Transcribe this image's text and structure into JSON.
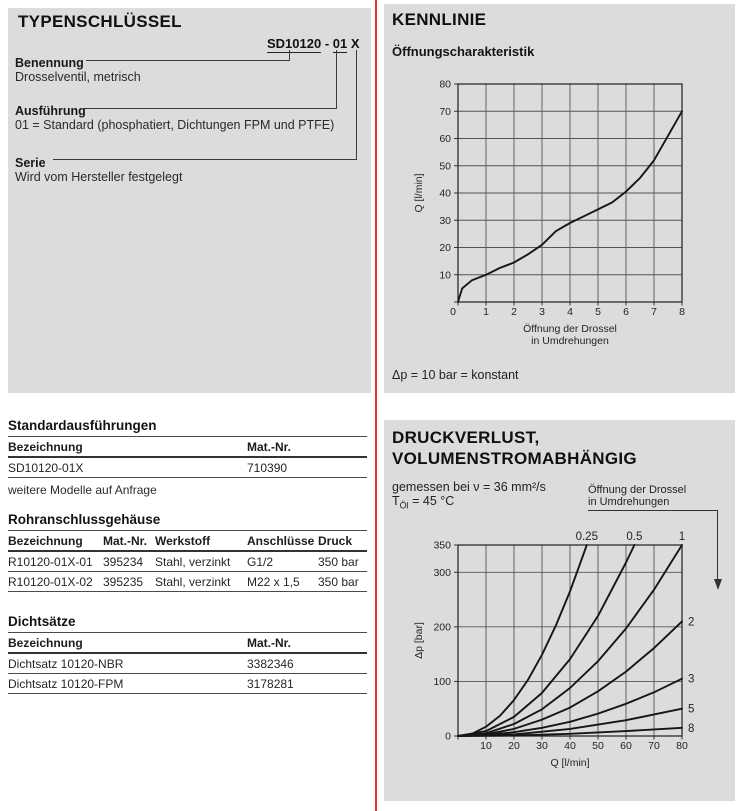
{
  "typenschluessel": {
    "title": "TYPENSCHLÜSSEL",
    "code_part1": "SD10120",
    "code_sep": " - ",
    "code_part2": "01",
    "code_part3": " X",
    "entries": [
      {
        "label": "Benennung",
        "desc": "Drosselventil, metrisch"
      },
      {
        "label": "Ausführung",
        "desc": "01 = Standard (phosphatiert, Dichtungen FPM und PTFE)"
      },
      {
        "label": "Serie",
        "desc": "Wird vom Hersteller festgelegt"
      }
    ]
  },
  "tables": {
    "standard": {
      "title": "Standardausführungen",
      "headers": [
        "Bezeichnung",
        "Mat.-Nr."
      ],
      "rows": [
        [
          "SD10120-01X",
          "710390"
        ]
      ],
      "footnote": "weitere Modelle auf Anfrage"
    },
    "rohranschluss": {
      "title": "Rohranschlussgehäuse",
      "headers": [
        "Bezeichnung",
        "Mat.-Nr.",
        "Werkstoff",
        "Anschlüsse",
        "Druck"
      ],
      "rows": [
        [
          "R10120-01X-01",
          "395234",
          "Stahl, verzinkt",
          "G1/2",
          "350 bar"
        ],
        [
          "R10120-01X-02",
          "395235",
          "Stahl, verzinkt",
          "M22 x 1,5",
          "350 bar"
        ]
      ]
    },
    "dichtsaetze": {
      "title": "Dichtsätze",
      "headers": [
        "Bezeichnung",
        "Mat.-Nr."
      ],
      "rows": [
        [
          "Dichtsatz 10120-NBR",
          "3382346"
        ],
        [
          "Dichtsatz 10120-FPM",
          "3178281"
        ]
      ]
    }
  },
  "kennlinie": {
    "title": "KENNLINIE",
    "subtitle": "Öffnungscharakteristik",
    "note": "Δp = 10 bar = konstant"
  },
  "druckverlust": {
    "title_line1": "DRUCKVERLUST,",
    "title_line2": "VOLUMENSTROMABHÄNGIG",
    "measured_line1": "gemessen bei ν = 36 mm²/s",
    "t_symbol": "T",
    "t_sub": "Öl",
    "t_rest": " = 45 °C",
    "arrow_label_line1": "Öffnung der Drossel",
    "arrow_label_line2": "in Umdrehungen"
  },
  "chart_data": [
    {
      "type": "line",
      "title": "Öffnungscharakteristik",
      "xlabel_lines": [
        "Öffnung der Drossel",
        "in Umdrehungen"
      ],
      "ylabel": "Q [l/min]",
      "xlim": [
        0,
        8
      ],
      "ylim": [
        0,
        80
      ],
      "xticks": [
        0,
        1,
        2,
        3,
        4,
        5,
        6,
        7,
        8
      ],
      "yticks": [
        0,
        10,
        20,
        30,
        40,
        50,
        60,
        70,
        80
      ],
      "xtick_labels": [
        0,
        1,
        2,
        3,
        4,
        5,
        6,
        7,
        8
      ],
      "ytick_labels": [
        10,
        20,
        30,
        40,
        50,
        60,
        70,
        80
      ],
      "grid": true,
      "note": "Δp = 10 bar = konstant",
      "series": [
        {
          "name": "Q",
          "x": [
            0,
            0.15,
            0.5,
            1,
            1.5,
            2,
            2.5,
            3,
            3.5,
            4,
            4.5,
            5,
            5.5,
            6,
            6.5,
            7,
            7.5,
            8
          ],
          "y": [
            0,
            5,
            8,
            10,
            12.5,
            14.5,
            17.5,
            21,
            26,
            29,
            31.5,
            34,
            36.5,
            40.5,
            45.5,
            52,
            61,
            70
          ]
        }
      ]
    },
    {
      "type": "line",
      "title": "Druckverlust, volumenstromabhängig",
      "legend_title": "Öffnung der Drossel in Umdrehungen",
      "xlabel_lines": [
        "Q [l/min]"
      ],
      "ylabel": "Δp [bar]",
      "xlim": [
        0,
        80
      ],
      "ylim": [
        0,
        350
      ],
      "xticks": [
        0,
        10,
        20,
        30,
        40,
        50,
        60,
        70,
        80
      ],
      "yticks": [
        0,
        100,
        200,
        300,
        350
      ],
      "xtick_labels": [
        10,
        20,
        30,
        40,
        50,
        60,
        70,
        80
      ],
      "ytick_labels": [
        0,
        100,
        200,
        300,
        350
      ],
      "grid": true,
      "series": [
        {
          "name": "0.25",
          "label_pos": "top",
          "x": [
            0,
            5,
            10,
            15,
            20,
            25,
            30,
            35,
            40,
            46
          ],
          "y": [
            0,
            4,
            17,
            37,
            66,
            103,
            149,
            203,
            265,
            350
          ]
        },
        {
          "name": "0.5",
          "label_pos": "top",
          "x": [
            0,
            10,
            20,
            30,
            40,
            50,
            60,
            63
          ],
          "y": [
            0,
            9,
            35,
            79,
            141,
            220,
            318,
            350
          ]
        },
        {
          "name": "1",
          "label_pos": "top",
          "x": [
            0,
            10,
            20,
            30,
            40,
            50,
            60,
            70,
            80
          ],
          "y": [
            0,
            5,
            22,
            49,
            88,
            137,
            197,
            268,
            350
          ]
        },
        {
          "name": "2",
          "label_pos": "right",
          "x": [
            0,
            10,
            20,
            30,
            40,
            50,
            60,
            70,
            80
          ],
          "y": [
            0,
            3,
            13,
            30,
            52,
            82,
            118,
            161,
            210
          ]
        },
        {
          "name": "3",
          "label_pos": "right",
          "x": [
            0,
            10,
            20,
            30,
            40,
            50,
            60,
            70,
            80
          ],
          "y": [
            0,
            2,
            7,
            15,
            26,
            41,
            59,
            80,
            105
          ]
        },
        {
          "name": "5",
          "label_pos": "right",
          "x": [
            0,
            20,
            40,
            60,
            80
          ],
          "y": [
            0,
            3,
            13,
            29,
            50
          ]
        },
        {
          "name": "8",
          "label_pos": "right",
          "x": [
            0,
            20,
            40,
            60,
            80
          ],
          "y": [
            0,
            1,
            4,
            9,
            15
          ]
        }
      ]
    }
  ]
}
